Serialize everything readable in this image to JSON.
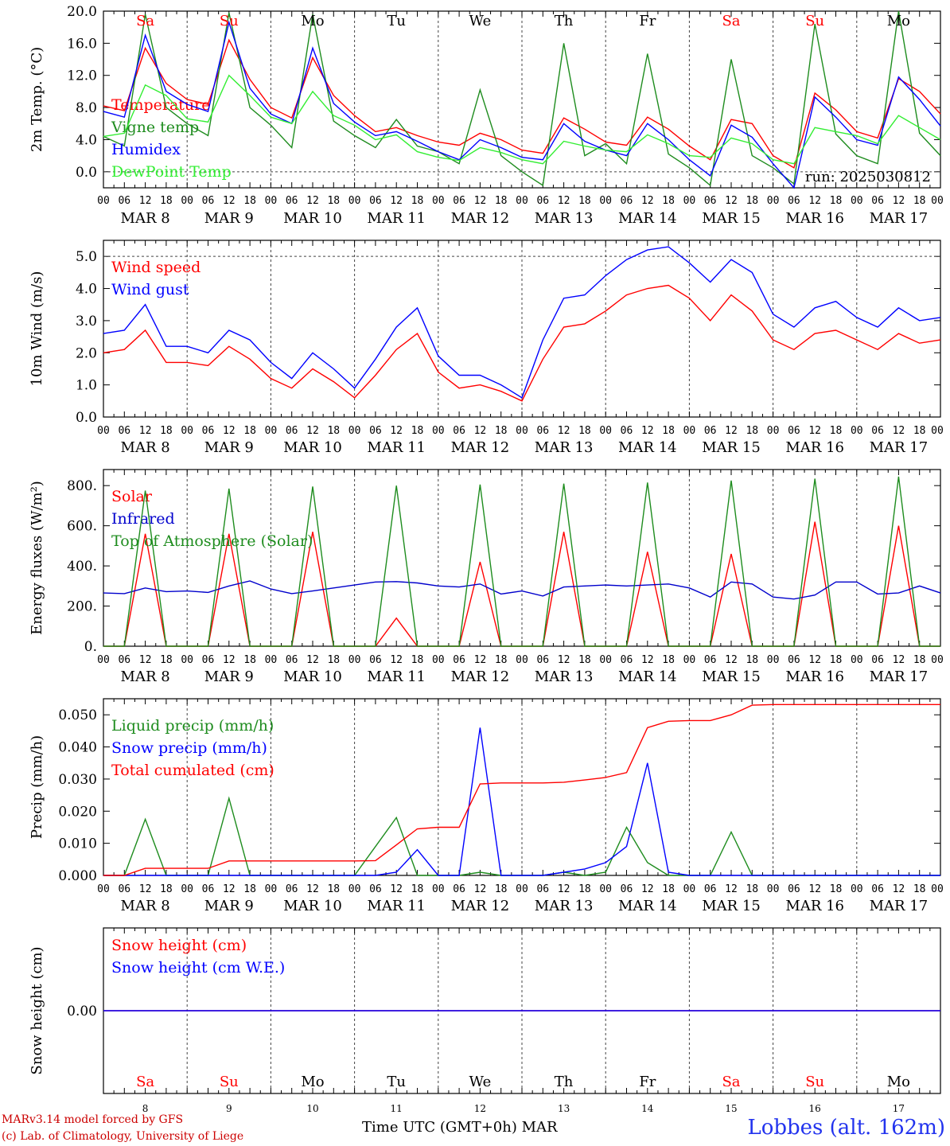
{
  "chart_data": [
    {
      "type": "line",
      "ylabel": "2m Temp. (°C)",
      "ylim": [
        -2,
        20
      ],
      "yticks": [
        "0.0",
        "4.0",
        "8.0",
        "12.0",
        "16.0",
        "20.0"
      ],
      "x_hours": [
        0,
        6,
        12,
        18,
        24,
        30,
        36,
        42,
        48,
        54,
        60,
        66,
        72,
        78,
        84,
        90,
        96,
        102,
        108,
        114,
        120,
        126,
        132,
        138,
        144,
        150,
        156,
        162,
        168,
        174,
        180,
        186,
        192,
        198,
        204,
        210,
        216,
        222,
        228,
        234,
        240
      ],
      "series": [
        {
          "name": "Temperature",
          "color": "#ff0000",
          "values": [
            8.2,
            7.6,
            15.4,
            11.0,
            9.0,
            8.4,
            16.4,
            11.5,
            8.0,
            6.7,
            14.2,
            9.5,
            7.0,
            5.0,
            5.5,
            4.5,
            3.7,
            3.3,
            4.8,
            4.0,
            2.7,
            2.3,
            6.7,
            5.3,
            3.7,
            3.3,
            6.8,
            5.3,
            3.2,
            1.5,
            6.5,
            6.0,
            2.0,
            0.5,
            9.8,
            7.7,
            5.0,
            4.2,
            11.6,
            10.0,
            7.2
          ]
        },
        {
          "name": "Vigne temp",
          "color": "#1e8c1e",
          "values": [
            4.4,
            3.2,
            19.6,
            8.0,
            6.0,
            4.5,
            19.8,
            8.0,
            5.8,
            3.0,
            19.6,
            6.3,
            4.5,
            3.0,
            6.5,
            3.2,
            2.5,
            1.0,
            10.2,
            2.0,
            0.0,
            -1.7,
            16.0,
            2.0,
            3.5,
            1.0,
            14.7,
            2.2,
            0.5,
            -1.7,
            14.0,
            2.0,
            0.5,
            -1.5,
            18.4,
            4.7,
            2.0,
            1.0,
            20.0,
            4.8,
            2.0
          ]
        },
        {
          "name": "Humidex",
          "color": "#0000ff",
          "values": [
            7.5,
            6.8,
            17.0,
            10.0,
            8.4,
            7.5,
            18.6,
            10.4,
            7.2,
            6.0,
            15.4,
            8.5,
            6.2,
            4.5,
            5.0,
            3.8,
            2.5,
            1.5,
            4.0,
            3.0,
            1.8,
            1.5,
            6.0,
            3.8,
            2.7,
            2.0,
            6.0,
            4.0,
            1.5,
            -0.5,
            5.8,
            4.3,
            1.0,
            -2.0,
            9.3,
            6.8,
            4.0,
            3.3,
            11.8,
            9.0,
            5.7
          ]
        },
        {
          "name": "DewPoint Temp",
          "color": "#33ee33",
          "values": [
            4.4,
            4.8,
            10.8,
            9.5,
            6.6,
            6.2,
            12.0,
            9.5,
            6.8,
            6.0,
            10.0,
            7.0,
            5.8,
            4.0,
            4.6,
            2.5,
            1.8,
            1.4,
            3.0,
            2.4,
            1.5,
            1.0,
            3.8,
            3.2,
            2.7,
            2.5,
            4.6,
            3.5,
            2.0,
            1.8,
            4.2,
            3.5,
            1.5,
            1.0,
            5.5,
            5.0,
            4.5,
            3.5,
            7.0,
            5.5,
            4.0
          ]
        }
      ],
      "annotation": "run: 2025030812"
    },
    {
      "type": "line",
      "ylabel": "10m Wind (m/s)",
      "ylim": [
        0,
        5.5
      ],
      "yticks": [
        "0.0",
        "1.0",
        "2.0",
        "3.0",
        "4.0",
        "5.0"
      ],
      "x_hours": [
        0,
        6,
        12,
        18,
        24,
        30,
        36,
        42,
        48,
        54,
        60,
        66,
        72,
        78,
        84,
        90,
        96,
        102,
        108,
        114,
        120,
        126,
        132,
        138,
        144,
        150,
        156,
        162,
        168,
        174,
        180,
        186,
        192,
        198,
        204,
        210,
        216,
        222,
        228,
        234,
        240
      ],
      "series": [
        {
          "name": "Wind speed",
          "color": "#ff0000",
          "values": [
            2.0,
            2.1,
            2.7,
            1.7,
            1.7,
            1.6,
            2.2,
            1.8,
            1.2,
            0.9,
            1.5,
            1.1,
            0.6,
            1.3,
            2.1,
            2.6,
            1.4,
            0.9,
            1.0,
            0.8,
            0.5,
            1.8,
            2.8,
            2.9,
            3.3,
            3.8,
            4.0,
            4.1,
            3.7,
            3.0,
            3.8,
            3.3,
            2.4,
            2.1,
            2.6,
            2.7,
            2.4,
            2.1,
            2.6,
            2.3,
            2.4
          ]
        },
        {
          "name": "Wind gust",
          "color": "#0000ff",
          "values": [
            2.6,
            2.7,
            3.5,
            2.2,
            2.2,
            2.0,
            2.7,
            2.4,
            1.7,
            1.2,
            2.0,
            1.5,
            0.9,
            1.8,
            2.8,
            3.4,
            1.9,
            1.3,
            1.3,
            1.0,
            0.6,
            2.4,
            3.7,
            3.8,
            4.4,
            4.9,
            5.2,
            5.3,
            4.8,
            4.2,
            4.9,
            4.5,
            3.2,
            2.8,
            3.4,
            3.6,
            3.1,
            2.8,
            3.4,
            3.0,
            3.1
          ]
        }
      ]
    },
    {
      "type": "line",
      "ylabel": "Energy fluxes (W/m²)",
      "ylim": [
        0,
        880
      ],
      "yticks": [
        "0.",
        "200.",
        "400.",
        "600.",
        "800."
      ],
      "x_hours": [
        0,
        6,
        12,
        18,
        24,
        30,
        36,
        42,
        48,
        54,
        60,
        66,
        72,
        78,
        84,
        90,
        96,
        102,
        108,
        114,
        120,
        126,
        132,
        138,
        144,
        150,
        156,
        162,
        168,
        174,
        180,
        186,
        192,
        198,
        204,
        210,
        216,
        222,
        228,
        234,
        240
      ],
      "series": [
        {
          "name": "Solar",
          "color": "#ff0000",
          "values": [
            0,
            0,
            560,
            0,
            0,
            0,
            560,
            0,
            0,
            0,
            570,
            0,
            0,
            0,
            140,
            0,
            0,
            0,
            420,
            0,
            0,
            0,
            570,
            0,
            0,
            0,
            470,
            0,
            0,
            0,
            460,
            0,
            0,
            0,
            620,
            0,
            0,
            0,
            600,
            0,
            0
          ]
        },
        {
          "name": "Infrared",
          "color": "#0000cc",
          "values": [
            265,
            262,
            290,
            272,
            275,
            268,
            300,
            325,
            285,
            262,
            275,
            290,
            305,
            320,
            322,
            315,
            300,
            295,
            310,
            260,
            275,
            250,
            295,
            300,
            305,
            300,
            305,
            310,
            290,
            245,
            320,
            310,
            245,
            235,
            255,
            320,
            320,
            260,
            265,
            300,
            265
          ]
        },
        {
          "name": "Top of Atmosphere (Solar)",
          "color": "#1e8c1e",
          "values": [
            0,
            0,
            775,
            0,
            0,
            0,
            785,
            0,
            0,
            0,
            795,
            0,
            0,
            0,
            800,
            0,
            0,
            0,
            805,
            0,
            0,
            0,
            810,
            0,
            0,
            0,
            815,
            0,
            0,
            0,
            825,
            0,
            0,
            0,
            835,
            0,
            0,
            0,
            845,
            0,
            0
          ]
        }
      ]
    },
    {
      "type": "line",
      "ylabel": "Precip (mm/h)",
      "ylim": [
        0,
        0.055
      ],
      "yticks": [
        "0.000",
        "0.010",
        "0.020",
        "0.030",
        "0.040",
        "0.050"
      ],
      "x_hours": [
        0,
        6,
        12,
        18,
        24,
        30,
        36,
        42,
        48,
        54,
        60,
        66,
        72,
        78,
        84,
        90,
        96,
        102,
        108,
        114,
        120,
        126,
        132,
        138,
        144,
        150,
        156,
        162,
        168,
        174,
        180,
        186,
        192,
        198,
        204,
        210,
        216,
        222,
        228,
        234,
        240
      ],
      "series": [
        {
          "name": "Liquid precip (mm/h)",
          "color": "#1e8c1e",
          "values": [
            0,
            0,
            0.0175,
            0,
            0,
            0,
            0.024,
            0,
            0,
            0,
            0,
            0,
            0,
            0.009,
            0.018,
            0,
            0,
            0,
            0.001,
            0,
            0,
            0,
            0.001,
            0,
            0.001,
            0.015,
            0.004,
            0,
            0,
            0,
            0.0135,
            0,
            0,
            0,
            0,
            0,
            0,
            0,
            0,
            0,
            0
          ]
        },
        {
          "name": "Snow precip (mm/h)",
          "color": "#0000ff",
          "values": [
            0,
            0,
            0,
            0,
            0,
            0,
            0,
            0,
            0,
            0,
            0,
            0,
            0,
            0,
            0.001,
            0.008,
            0,
            0,
            0.046,
            0,
            0,
            0,
            0.001,
            0.002,
            0.004,
            0.009,
            0.035,
            0.001,
            0,
            0,
            0,
            0,
            0,
            0,
            0,
            0,
            0,
            0,
            0,
            0,
            0
          ]
        },
        {
          "name": "Total cumulated (cm)",
          "color": "#ff0000",
          "values": [
            0,
            0,
            0.0022,
            0.0022,
            0.0022,
            0.0022,
            0.0045,
            0.0045,
            0.0045,
            0.0045,
            0.0045,
            0.0045,
            0.0045,
            0.0046,
            0.0095,
            0.0145,
            0.015,
            0.015,
            0.0285,
            0.0288,
            0.0288,
            0.0288,
            0.029,
            0.0297,
            0.0305,
            0.032,
            0.046,
            0.048,
            0.0482,
            0.0482,
            0.05,
            0.053,
            0.0532,
            0.0532,
            0.0532,
            0.0532,
            0.0532,
            0.0532,
            0.0532,
            0.0532,
            0.0532
          ]
        }
      ]
    },
    {
      "type": "line",
      "ylabel": "Snow height (cm)",
      "ylim": [
        -1,
        1
      ],
      "yticks": [
        "0.00"
      ],
      "x_hours": [
        0,
        240
      ],
      "series": [
        {
          "name": "Snow height (cm)",
          "color": "#ff0000",
          "values": [
            0,
            0
          ]
        },
        {
          "name": "Snow height (cm W.E.)",
          "color": "#0000ff",
          "values": [
            0,
            0
          ]
        }
      ]
    }
  ],
  "axis": {
    "tick_hours": [
      "00",
      "06",
      "12",
      "18"
    ],
    "dates": [
      "MAR  8",
      "MAR  9",
      "MAR 10",
      "MAR 11",
      "MAR 12",
      "MAR 13",
      "MAR 14",
      "MAR 15",
      "MAR 16",
      "MAR 17"
    ],
    "days": [
      "Sa",
      "Su",
      "Mo",
      "Tu",
      "We",
      "Th",
      "Fr",
      "Sa",
      "Su",
      "Mo"
    ],
    "day_numbers": [
      "8",
      "9",
      "10",
      "11",
      "12",
      "13",
      "14",
      "15",
      "16",
      "17"
    ],
    "weekend_color": "#ff0000",
    "weekday_color": "#000000",
    "weekend_flags": [
      true,
      true,
      false,
      false,
      false,
      false,
      false,
      true,
      true,
      false
    ]
  },
  "footer": {
    "credit_line1": "MARv3.14 model forced by GFS",
    "credit_line2": "(c) Lab. of Climatology, University of Liege",
    "xaxis_title": "Time UTC (GMT+0h) MAR",
    "station": "Lobbes (alt. 162m)"
  },
  "colors": {
    "station": "#2233ee",
    "credit": "#cc0000",
    "axes": "#000000"
  }
}
